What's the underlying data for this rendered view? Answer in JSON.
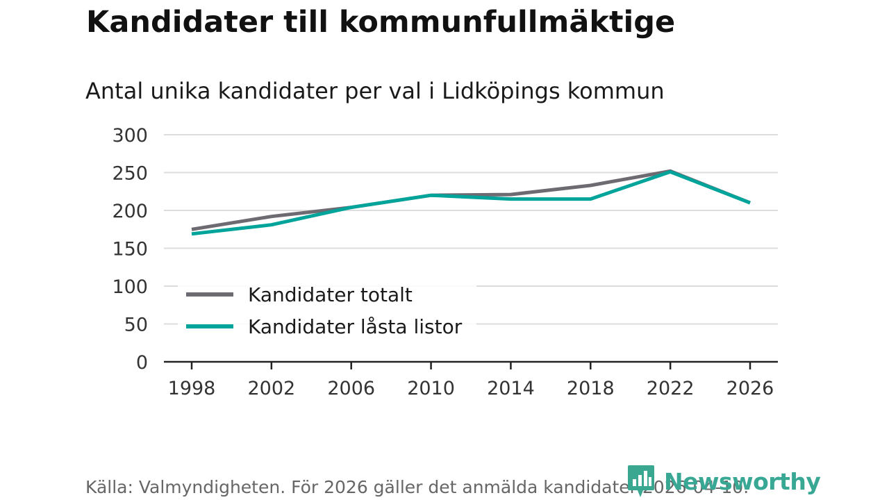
{
  "header": {
    "title": "Kandidater till kommunfullmäktige",
    "subtitle": "Antal unika kandidater per val i Lidköpings kommun"
  },
  "footer": {
    "source": "Källa: Valmyndigheten. För 2026 gäller det anmälda kandidater 2026-04-10.",
    "brand": "Newsworthy"
  },
  "colors": {
    "series_total": "#6e6a72",
    "series_locked": "#00a49a",
    "grid": "#dddddd",
    "axis": "#222222",
    "brand": "#38a894"
  },
  "chart_data": {
    "type": "line",
    "title": "Antal unika kandidater per val i Lidköpings kommun",
    "xlabel": "",
    "ylabel": "",
    "categories": [
      "1998",
      "2002",
      "2006",
      "2010",
      "2014",
      "2018",
      "2022",
      "2026"
    ],
    "ylim": [
      0,
      300
    ],
    "yticks": [
      0,
      50,
      100,
      150,
      200,
      250,
      300
    ],
    "grid": true,
    "legend_position": "bottom-left",
    "series": [
      {
        "name": "Kandidater totalt",
        "color": "#6e6a72",
        "values": [
          175,
          192,
          204,
          220,
          221,
          233,
          252,
          210
        ]
      },
      {
        "name": "Kandidater låsta listor",
        "color": "#00a49a",
        "values": [
          169,
          181,
          204,
          220,
          215,
          215,
          251,
          210
        ]
      }
    ]
  }
}
